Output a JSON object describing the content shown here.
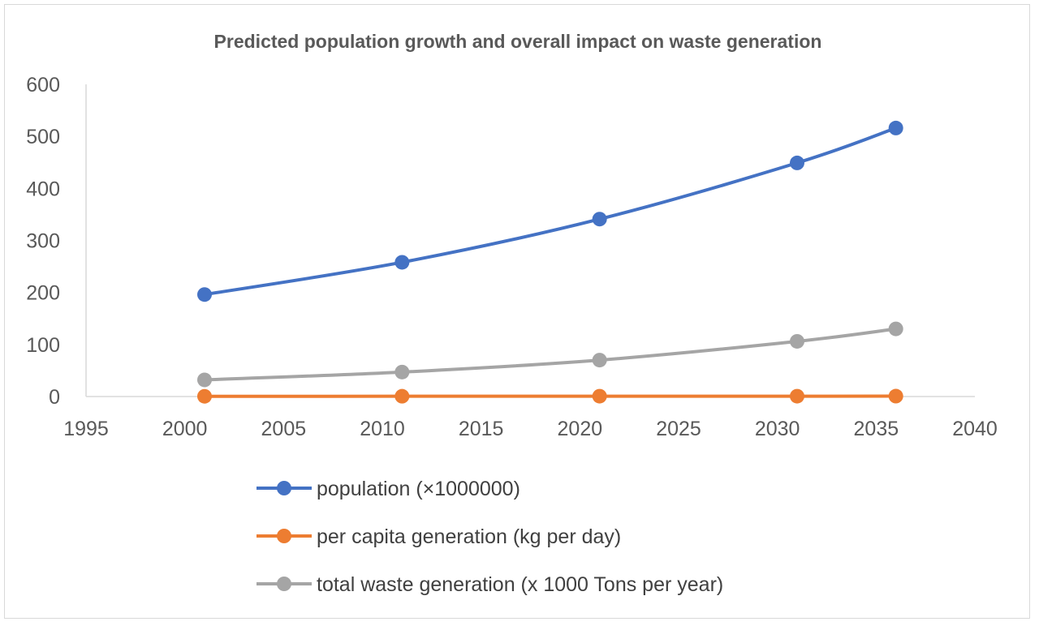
{
  "chart_data": {
    "type": "scatter",
    "title": "Predicted population growth and overall impact on waste generation",
    "xlabel": "",
    "ylabel": "",
    "xlim": [
      1995,
      2040
    ],
    "ylim": [
      0,
      600
    ],
    "x_ticks": [
      1995,
      2000,
      2005,
      2010,
      2015,
      2020,
      2025,
      2030,
      2035,
      2040
    ],
    "y_ticks": [
      0,
      100,
      200,
      300,
      400,
      500,
      600
    ],
    "x": [
      2001,
      2011,
      2021,
      2031,
      2036
    ],
    "grid": false,
    "markers": true,
    "smooth_lines": true,
    "legend_position": "bottom",
    "series": [
      {
        "name": "population (×1000000)",
        "color": "#4472c4",
        "values": [
          196,
          258,
          341,
          449,
          516
        ]
      },
      {
        "name": "per capita generation (kg per day)",
        "color": "#ed7d31",
        "values": [
          0.4,
          0.5,
          0.6,
          0.65,
          0.7
        ]
      },
      {
        "name": "total waste generation (x 1000 Tons per year)",
        "color": "#a5a5a5",
        "values": [
          32,
          47,
          70,
          106,
          130
        ]
      }
    ]
  }
}
